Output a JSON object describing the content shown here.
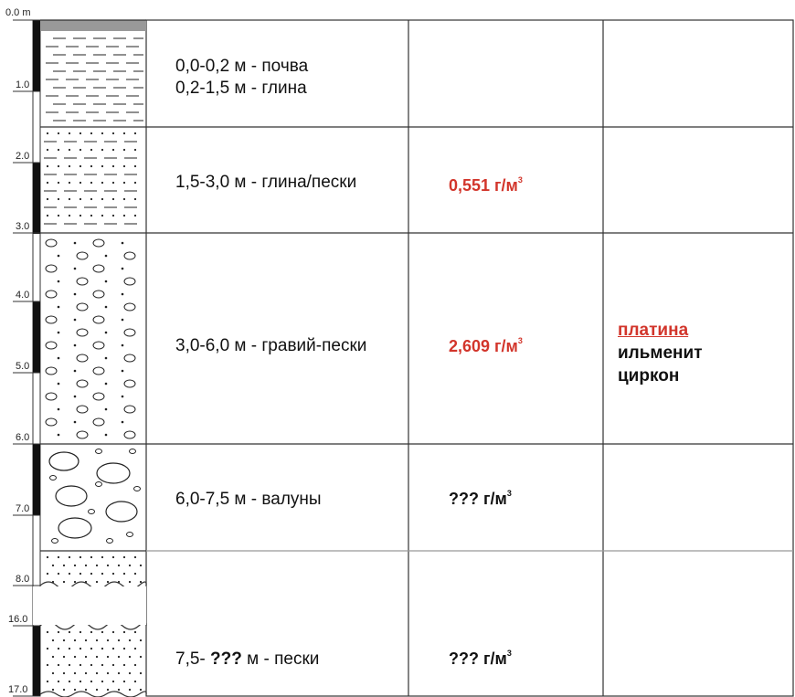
{
  "scale": {
    "ticks": [
      {
        "label": "0.0 m",
        "y": 0
      },
      {
        "label": "1.0",
        "y": 1
      },
      {
        "label": "2.0",
        "y": 2
      },
      {
        "label": "3.0",
        "y": 3
      },
      {
        "label": "4.0",
        "y": 4
      },
      {
        "label": "5.0",
        "y": 5
      },
      {
        "label": "6.0",
        "y": 6
      },
      {
        "label": "7.0",
        "y": 7
      },
      {
        "label": "8.0",
        "y": 8
      },
      {
        "label": "16.0",
        "y": 16
      },
      {
        "label": "17.0",
        "y": 17
      }
    ]
  },
  "layers": [
    {
      "lines": [
        "0,0-0,2 м - почва",
        "0,2-1,5 м - глина"
      ],
      "density": "",
      "minerals": [],
      "lithology": "clay"
    },
    {
      "lines": [
        "1,5-3,0 м - глина/пески"
      ],
      "density": "0,551 г/м",
      "density_unit_sup": "3",
      "density_color": "red",
      "minerals": [],
      "lithology": "clay-sand"
    },
    {
      "lines": [
        "3,0-6,0 м - гравий-пески"
      ],
      "density": "2,609 г/м",
      "density_unit_sup": "3",
      "density_color": "red",
      "minerals": [
        {
          "name": "платина",
          "color": "red",
          "underline": true
        },
        {
          "name": "ильменит"
        },
        {
          "name": "циркон"
        }
      ],
      "lithology": "gravel-sand"
    },
    {
      "lines": [
        "6,0-7,5 м - валуны"
      ],
      "density": "??? г/м",
      "density_unit_sup": "3",
      "density_color": "black",
      "minerals": [],
      "lithology": "boulders"
    },
    {
      "lines": [],
      "density": "",
      "minerals": [],
      "lithology": "sand"
    },
    {
      "lines": [
        "7,5- ??? м - пески"
      ],
      "line_bold_part": "???",
      "line_prefix": "7,5- ",
      "line_suffix": " м - пески",
      "density": "??? г/м",
      "density_unit_sup": "3",
      "density_color": "black",
      "minerals": [],
      "lithology": "sand"
    }
  ],
  "colors": {
    "accent_red": "#d2352b",
    "grid": "#333333"
  }
}
